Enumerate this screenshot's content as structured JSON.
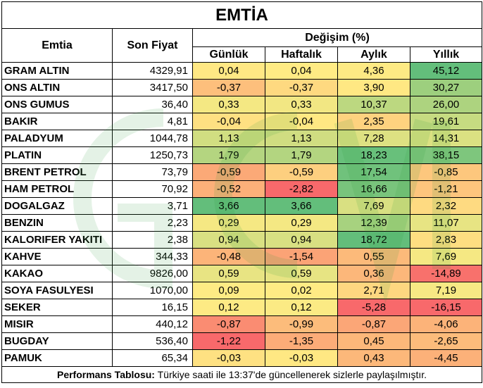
{
  "title": "EMTİA",
  "headers": {
    "commodity": "Emtia",
    "price": "Son Fiyat",
    "change_group": "Değişim (%)",
    "daily": "Günlük",
    "weekly": "Haftalık",
    "monthly": "Aylık",
    "yearly": "Yıllık"
  },
  "rows": [
    {
      "name": "GRAM ALTIN",
      "price": "4329,91",
      "daily": "0,04",
      "weekly": "0,04",
      "monthly": "4,36",
      "yearly": "45,12"
    },
    {
      "name": "ONS ALTIN",
      "price": "3417,50",
      "daily": "-0,37",
      "weekly": "-0,37",
      "monthly": "3,90",
      "yearly": "30,27"
    },
    {
      "name": "ONS GUMUS",
      "price": "36,40",
      "daily": "0,33",
      "weekly": "0,33",
      "monthly": "10,37",
      "yearly": "26,00"
    },
    {
      "name": "BAKIR",
      "price": "4,81",
      "daily": "-0,04",
      "weekly": "-0,04",
      "monthly": "2,35",
      "yearly": "19,61"
    },
    {
      "name": "PALADYUM",
      "price": "1044,78",
      "daily": "1,13",
      "weekly": "1,13",
      "monthly": "7,28",
      "yearly": "14,31"
    },
    {
      "name": "PLATIN",
      "price": "1250,73",
      "daily": "1,79",
      "weekly": "1,79",
      "monthly": "18,23",
      "yearly": "38,15"
    },
    {
      "name": "BRENT PETROL",
      "price": "73,79",
      "daily": "-0,59",
      "weekly": "-0,59",
      "monthly": "17,54",
      "yearly": "-0,85"
    },
    {
      "name": "HAM PETROL",
      "price": "70,92",
      "daily": "-0,52",
      "weekly": "-2,82",
      "monthly": "16,66",
      "yearly": "-1,21"
    },
    {
      "name": "DOGALGAZ",
      "price": "3,71",
      "daily": "3,66",
      "weekly": "3,66",
      "monthly": "7,69",
      "yearly": "2,32"
    },
    {
      "name": "BENZIN",
      "price": "2,23",
      "daily": "0,29",
      "weekly": "0,29",
      "monthly": "12,39",
      "yearly": "11,07"
    },
    {
      "name": "KALORIFER YAKITI",
      "price": "2,38",
      "daily": "0,94",
      "weekly": "0,94",
      "monthly": "18,72",
      "yearly": "2,83"
    },
    {
      "name": "KAHVE",
      "price": "344,33",
      "daily": "-0,48",
      "weekly": "-1,54",
      "monthly": "0,55",
      "yearly": "7,69"
    },
    {
      "name": "KAKAO",
      "price": "9826,00",
      "daily": "0,59",
      "weekly": "0,59",
      "monthly": "0,36",
      "yearly": "-14,89"
    },
    {
      "name": "SOYA FASULYESI",
      "price": "1070,00",
      "daily": "0,09",
      "weekly": "0,02",
      "monthly": "2,71",
      "yearly": "7,19"
    },
    {
      "name": "SEKER",
      "price": "16,15",
      "daily": "0,12",
      "weekly": "0,12",
      "monthly": "-5,28",
      "yearly": "-16,15"
    },
    {
      "name": "MISIR",
      "price": "440,12",
      "daily": "-0,87",
      "weekly": "-0,99",
      "monthly": "-0,87",
      "yearly": "-4,06"
    },
    {
      "name": "BUGDAY",
      "price": "536,40",
      "daily": "-1,22",
      "weekly": "-1,35",
      "monthly": "0,45",
      "yearly": "-2,65"
    },
    {
      "name": "PAMUK",
      "price": "65,34",
      "daily": "-0,03",
      "weekly": "-0,03",
      "monthly": "0,43",
      "yearly": "-4,45"
    }
  ],
  "colors": {
    "red": "#f8696b",
    "yellow": "#ffeb84",
    "green": "#63be7b"
  },
  "footer": {
    "label": "Performans Tablosu:",
    "text": " Türkiye saati ile 13:37'de güncellenerek sizlerle paylaşılmıştır."
  }
}
